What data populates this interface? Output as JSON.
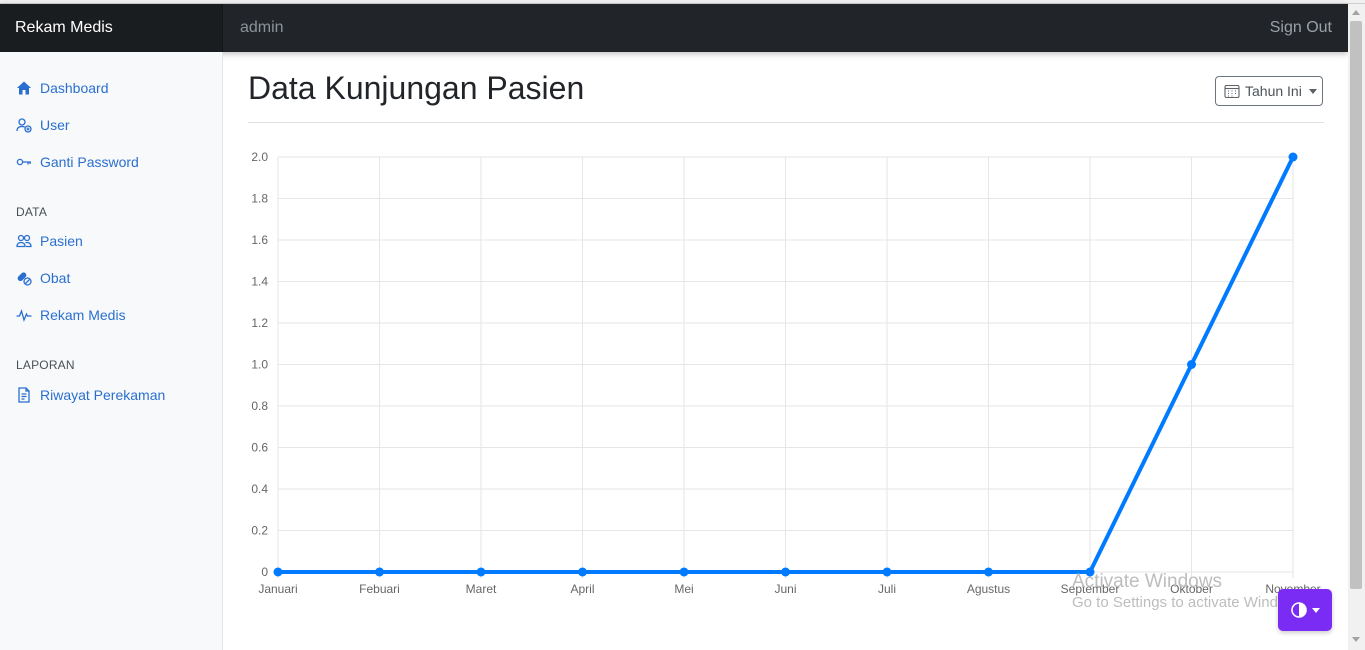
{
  "navbar": {
    "brand": "Rekam Medis",
    "user": "admin",
    "signout_label": "Sign Out"
  },
  "sidebar": {
    "items": [
      {
        "label": "Dashboard",
        "icon": "house-icon"
      },
      {
        "label": "User",
        "icon": "user-add-icon"
      },
      {
        "label": "Ganti Password",
        "icon": "key-icon"
      }
    ],
    "data_heading": "DATA",
    "data_items": [
      {
        "label": "Pasien",
        "icon": "people-icon"
      },
      {
        "label": "Obat",
        "icon": "capsule-icon"
      },
      {
        "label": "Rekam Medis",
        "icon": "pulse-icon"
      }
    ],
    "report_heading": "LAPORAN",
    "report_items": [
      {
        "label": "Riwayat Perekaman",
        "icon": "document-icon"
      }
    ]
  },
  "main": {
    "title": "Data Kunjungan Pasien",
    "period_dropdown": {
      "label": "Tahun Ini",
      "icon": "calendar-icon"
    }
  },
  "chart_data": {
    "type": "line",
    "categories": [
      "Januari",
      "Febuari",
      "Maret",
      "April",
      "Mei",
      "Juni",
      "Juli",
      "Agustus",
      "September",
      "Oktober",
      "November"
    ],
    "series": [
      {
        "values": [
          0,
          0,
          0,
          0,
          0,
          0,
          0,
          0,
          0,
          1,
          2
        ],
        "color": "#007bff"
      }
    ],
    "ylim": [
      0,
      2
    ],
    "y_ticks": [
      "0",
      "0.2",
      "0.4",
      "0.6",
      "0.8",
      "1.0",
      "1.2",
      "1.4",
      "1.6",
      "1.8",
      "2.0"
    ],
    "grid": true,
    "title": "",
    "xlabel": "",
    "ylabel": ""
  },
  "watermark": {
    "line1": "Activate Windows",
    "line2": "Go to Settings to activate Windows."
  },
  "theme_toggle": {
    "icon": "contrast-icon",
    "color": "#7a2cf5"
  }
}
